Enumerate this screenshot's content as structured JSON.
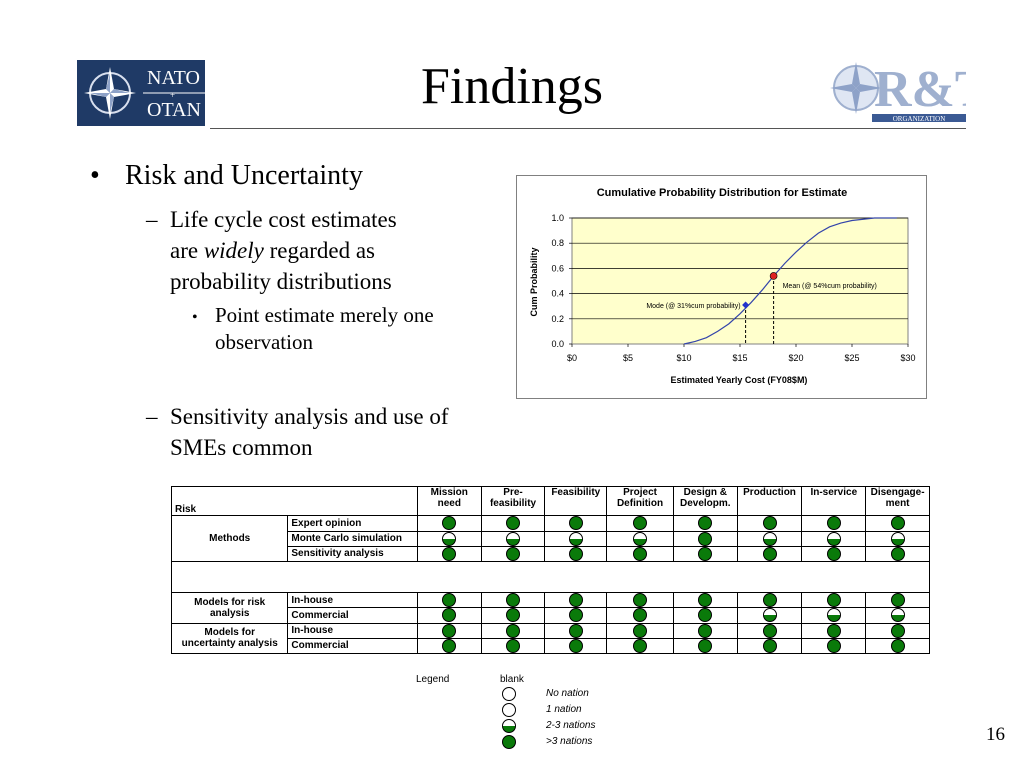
{
  "slide": {
    "title": "Findings",
    "page_number": "16"
  },
  "logos": {
    "left_top": "NATO",
    "left_bottom": "OTAN",
    "right_mark": "R&T",
    "right_sub": "ORGANIZATION"
  },
  "bullets": {
    "main": "Risk and Uncertainty",
    "sub1_lines": [
      "Life cycle cost estimates",
      "are ",
      "widely",
      " regarded as",
      "probability distributions"
    ],
    "subsub1": "Point estimate merely one observation",
    "sub2": "Sensitivity analysis and use of SMEs common"
  },
  "colors": {
    "plot_bg": "#FFFFCC",
    "curve": "#3344AA",
    "mean_marker": "#DD2222",
    "mode_marker": "#2233CC",
    "legend_green": "#0A7A0A"
  },
  "chart_data": {
    "type": "line",
    "title": "Cumulative Probability Distribution for Estimate",
    "xlabel": "Estimated Yearly Cost (FY08$M)",
    "ylabel": "Cum Probability",
    "xlim": [
      0,
      30
    ],
    "ylim": [
      0,
      1
    ],
    "x_ticks": [
      "$0",
      "$5",
      "$10",
      "$15",
      "$20",
      "$25",
      "$30"
    ],
    "y_ticks": [
      "0.0",
      "0.2",
      "0.4",
      "0.6",
      "0.8",
      "1.0"
    ],
    "grid": "horizontal",
    "series": [
      {
        "x": [
          10,
          11,
          12,
          13,
          14,
          15,
          16,
          17,
          18,
          19,
          20,
          21,
          22,
          23,
          24,
          25,
          26,
          27,
          28,
          29
        ],
        "y": [
          0.0,
          0.02,
          0.05,
          0.1,
          0.16,
          0.24,
          0.33,
          0.43,
          0.54,
          0.64,
          0.73,
          0.81,
          0.88,
          0.93,
          0.96,
          0.98,
          0.99,
          1.0,
          1.0,
          1.0
        ]
      }
    ],
    "annotations": [
      {
        "label": "Mean (@ 54%cum probability)",
        "x": 18,
        "y": 0.54,
        "marker": "circle"
      },
      {
        "label": "Mode (@ 31%cum probability)",
        "x": 15.5,
        "y": 0.31,
        "marker": "diamond"
      }
    ]
  },
  "table": {
    "risk_header": "Risk",
    "columns": [
      "Mission need",
      "Pre-feasibility",
      "Feasibility",
      "Project Definition",
      "Design & Developm.",
      "Production",
      "In-service",
      "Disengage-ment"
    ],
    "column_lines": [
      [
        "Mission",
        "need"
      ],
      [
        "Pre-",
        "feasibility"
      ],
      [
        "Feasibility",
        ""
      ],
      [
        "Project",
        "Definition"
      ],
      [
        "Design &",
        "Developm."
      ],
      [
        "Production",
        ""
      ],
      [
        "In-service",
        ""
      ],
      [
        "Disengage-",
        "ment"
      ]
    ],
    "groups": [
      {
        "label_lines": [
          "Methods"
        ],
        "rows": [
          {
            "name": "Expert opinion",
            "values": [
              "three",
              "three",
              "three",
              "three",
              "three",
              "three",
              "three",
              "three"
            ]
          },
          {
            "name": "Monte Carlo simulation",
            "values": [
              "two",
              "two",
              "two",
              "two",
              "three",
              "two",
              "two",
              "two"
            ]
          },
          {
            "name": "Sensitivity analysis",
            "values": [
              "three",
              "three",
              "three",
              "three",
              "three",
              "three",
              "three",
              "three"
            ]
          }
        ]
      },
      {
        "label_lines": [
          "Models for risk",
          "analysis"
        ],
        "rows": [
          {
            "name": "In-house",
            "values": [
              "three",
              "three",
              "three",
              "three",
              "three",
              "three",
              "three",
              "three"
            ]
          },
          {
            "name": "Commercial",
            "values": [
              "three",
              "three",
              "three",
              "three",
              "three",
              "two",
              "two",
              "two"
            ]
          }
        ]
      },
      {
        "label_lines": [
          "Models for",
          "uncertainty analysis"
        ],
        "rows": [
          {
            "name": "In-house",
            "values": [
              "three",
              "three",
              "three",
              "three",
              "three",
              "three",
              "three",
              "three"
            ]
          },
          {
            "name": "Commercial",
            "values": [
              "three",
              "three",
              "three",
              "three",
              "three",
              "three",
              "three",
              "three"
            ]
          }
        ]
      }
    ]
  },
  "legend": {
    "title": "Legend",
    "blank_label": "blank",
    "items": [
      {
        "symbol": "none",
        "label": "No nation"
      },
      {
        "symbol": "one",
        "label": "1 nation"
      },
      {
        "symbol": "two",
        "label": "2-3 nations"
      },
      {
        "symbol": "three",
        "label": ">3 nations"
      }
    ]
  }
}
